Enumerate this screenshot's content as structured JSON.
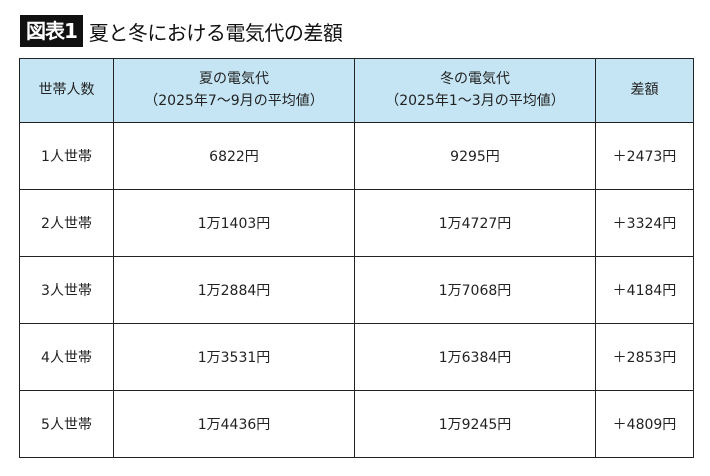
{
  "title": {
    "badge": "図表1",
    "text": "夏と冬における電気代の差額"
  },
  "table": {
    "header_color": "#c5e5f4",
    "headers": [
      {
        "line1": "世帯人数",
        "line2": ""
      },
      {
        "line1": "夏の電気代",
        "line2": "（2025年7～9月の平均値）"
      },
      {
        "line1": "冬の電気代",
        "line2": "（2025年1～3月の平均値）"
      },
      {
        "line1": "差額",
        "line2": ""
      }
    ],
    "rows": [
      [
        "1人世帯",
        "6822円",
        "9295円",
        "＋2473円"
      ],
      [
        "2人世帯",
        "1万1403円",
        "1万4727円",
        "＋3324円"
      ],
      [
        "3人世帯",
        "1万2884円",
        "1万7068円",
        "＋4184円"
      ],
      [
        "4人世帯",
        "1万3531円",
        "1万6384円",
        "＋2853円"
      ],
      [
        "5人世帯",
        "1万4436円",
        "1万9245円",
        "＋4809円"
      ]
    ]
  }
}
